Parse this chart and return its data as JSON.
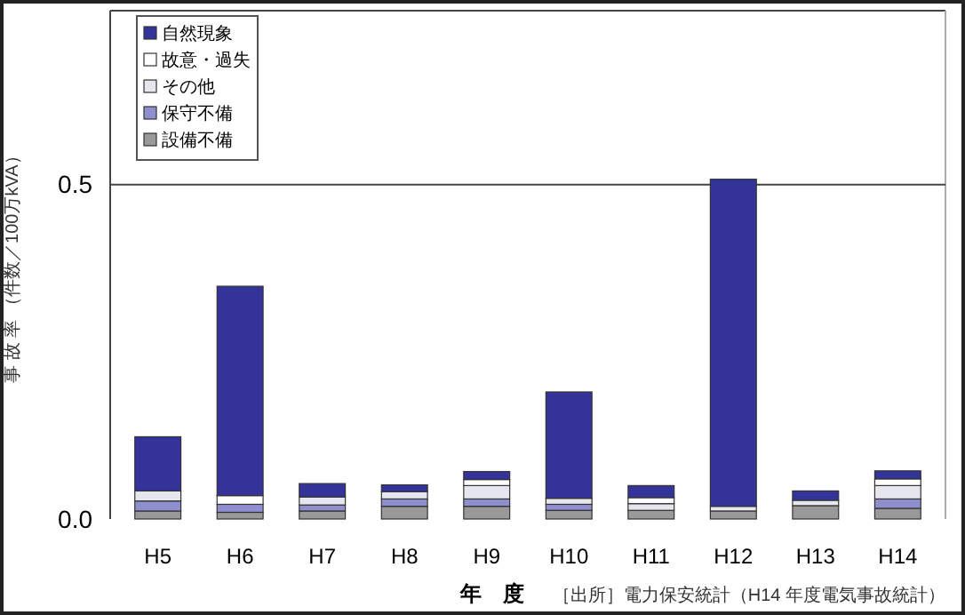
{
  "chart_data": {
    "type": "bar",
    "stacked": true,
    "ylabel": "事 故 率 （件数／100万kVA）",
    "xlabel": "年　度",
    "annotations": [
      "［出所］電力保安統計（H14 年度電気事故統計）"
    ],
    "categories": [
      "H5",
      "H6",
      "H7",
      "H8",
      "H9",
      "H10",
      "H11",
      "H12",
      "H13",
      "H14"
    ],
    "series": [
      {
        "name": "設備不備",
        "color": "#999999",
        "values": [
          0.012,
          0.01,
          0.012,
          0.019,
          0.019,
          0.013,
          0.013,
          0.012,
          0.02,
          0.016
        ]
      },
      {
        "name": "保守不備",
        "color": "#8f8fd0",
        "values": [
          0.015,
          0.012,
          0.009,
          0.011,
          0.011,
          0.009,
          0,
          0,
          0,
          0.014
        ]
      },
      {
        "name": "その他",
        "color": "#e6e6ee",
        "values": [
          0.015,
          0,
          0.012,
          0.011,
          0.02,
          0.009,
          0.01,
          0.007,
          0.008,
          0.02
        ]
      },
      {
        "name": "故意・過失",
        "color": "#ffffff",
        "values": [
          0,
          0.013,
          0,
          0,
          0.009,
          0,
          0.009,
          0,
          0,
          0.01
        ]
      },
      {
        "name": "自然現象",
        "color": "#333399",
        "values": [
          0.081,
          0.313,
          0.02,
          0.01,
          0.012,
          0.159,
          0.018,
          0.489,
          0.014,
          0.012
        ]
      }
    ],
    "ylim": [
      0,
      0.76
    ],
    "yticks": [
      {
        "value": 0,
        "label": "0.0"
      },
      {
        "value": 0.5,
        "label": "0.5"
      }
    ],
    "grid": "y",
    "legend": "top left"
  }
}
